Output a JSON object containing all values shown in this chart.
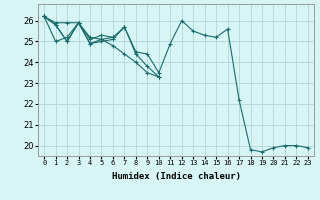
{
  "title": "",
  "xlabel": "Humidex (Indice chaleur)",
  "ylabel": "",
  "bg_color": "#d8f5f5",
  "grid_color": "#b8dada",
  "line_color": "#1a6b6b",
  "xlim": [
    -0.5,
    23.5
  ],
  "ylim": [
    19.5,
    26.8
  ],
  "yticks": [
    20,
    21,
    22,
    23,
    24,
    25,
    26
  ],
  "xticks": [
    0,
    1,
    2,
    3,
    4,
    5,
    6,
    7,
    8,
    9,
    10,
    11,
    12,
    13,
    14,
    15,
    16,
    17,
    18,
    19,
    20,
    21,
    22,
    23
  ],
  "series": [
    [
      26.2,
      25.8,
      25.0,
      25.9,
      24.9,
      25.1,
      25.2,
      25.7,
      24.5,
      24.4,
      23.5,
      24.9,
      26.0,
      25.5,
      25.3,
      25.2,
      25.6,
      22.2,
      19.8,
      19.7,
      19.9,
      20.0,
      20.0,
      19.9
    ],
    [
      26.2,
      25.8,
      25.0,
      25.9,
      24.9,
      25.0,
      25.1,
      25.7,
      24.4,
      23.8,
      23.3,
      null,
      null,
      null,
      null,
      null,
      null,
      null,
      null,
      null,
      null,
      null,
      null,
      null
    ],
    [
      26.2,
      25.9,
      25.9,
      25.9,
      25.1,
      25.3,
      25.2,
      null,
      null,
      null,
      null,
      null,
      null,
      null,
      null,
      null,
      null,
      null,
      null,
      null,
      null,
      null,
      null,
      null
    ],
    [
      26.2,
      25.0,
      25.2,
      25.9,
      25.2,
      25.1,
      24.8,
      24.4,
      24.0,
      23.5,
      23.3,
      null,
      null,
      null,
      null,
      null,
      null,
      null,
      null,
      null,
      null,
      null,
      null,
      null
    ]
  ],
  "xlabel_fontsize": 6.5,
  "xlabel_fontweight": "bold",
  "xtick_fontsize": 5.0,
  "ytick_fontsize": 6.0
}
